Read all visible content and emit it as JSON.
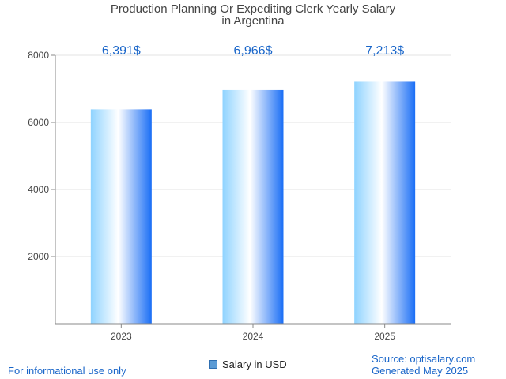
{
  "chart_data": {
    "type": "bar",
    "title_lines": [
      "Production Planning Or Expediting Clerk Yearly Salary",
      "in Argentina"
    ],
    "categories": [
      "2023",
      "2024",
      "2025"
    ],
    "series": [
      {
        "name": "Salary in USD",
        "values": [
          6391,
          6966,
          7213
        ]
      }
    ],
    "data_labels": [
      "6,391$",
      "6,966$",
      "7,213$"
    ],
    "y_ticks": [
      2000,
      4000,
      6000,
      8000
    ],
    "ylim": [
      0,
      8000
    ],
    "grid": true,
    "legend_position": "bottom",
    "colors": {
      "bar_dark": "#1a6ef5",
      "bar_light": "#ffffff",
      "bar_mid": "#8fd3ff",
      "label": "#1a66c9"
    }
  },
  "footer": {
    "left": "For informational use only",
    "source": "Source: optisalary.com",
    "generated": "Generated May 2025"
  }
}
